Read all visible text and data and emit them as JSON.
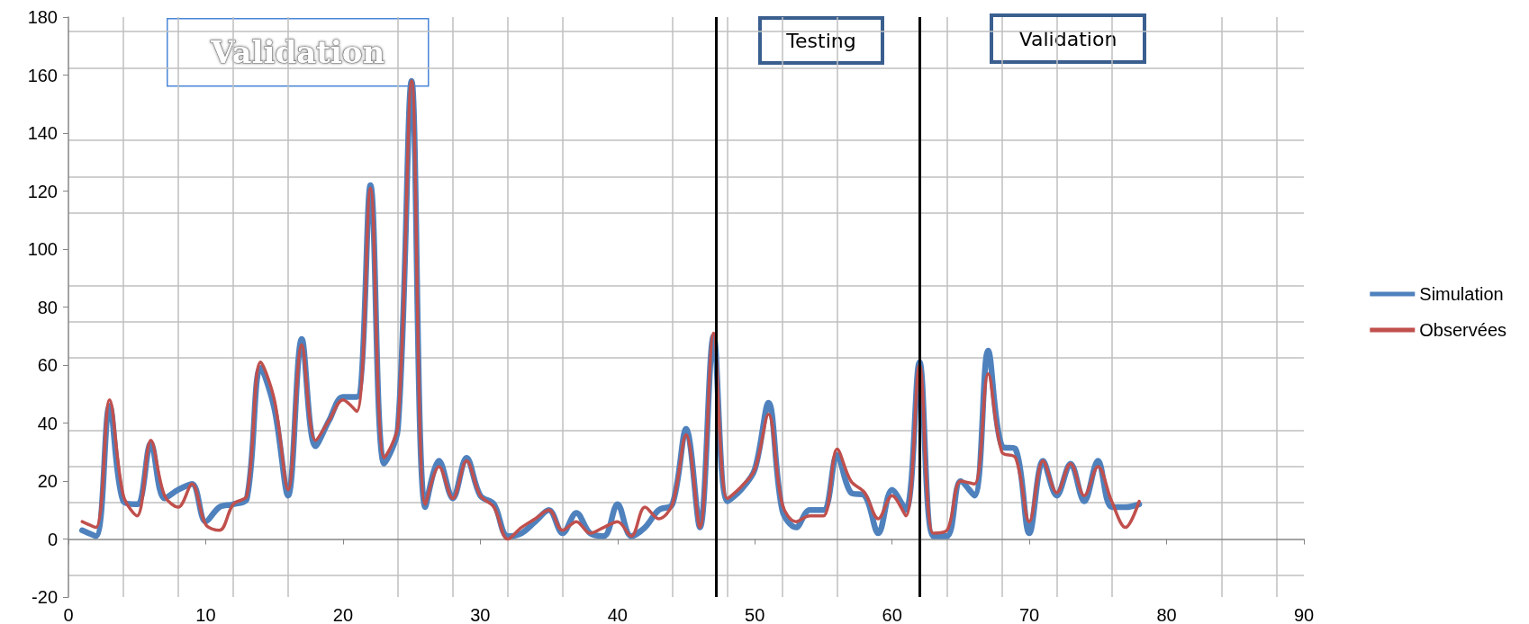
{
  "chart_data": {
    "type": "line",
    "x": [
      1,
      2,
      3,
      4,
      5,
      6,
      7,
      8,
      9,
      10,
      11,
      12,
      13,
      14,
      15,
      16,
      17,
      18,
      19,
      20,
      21,
      22,
      23,
      24,
      25,
      26,
      27,
      28,
      29,
      30,
      31,
      32,
      33,
      34,
      35,
      36,
      37,
      38,
      39,
      40,
      41,
      42,
      43,
      44,
      45,
      46,
      47,
      48,
      49,
      50,
      51,
      52,
      53,
      54,
      55,
      56,
      57,
      58,
      59,
      60,
      61,
      62,
      63,
      64,
      65,
      66,
      67,
      68,
      69,
      70,
      71,
      72,
      73,
      74,
      75,
      76,
      77,
      78
    ],
    "series": [
      {
        "name": "Simulation",
        "color": "#4f81bd",
        "values": [
          3,
          1,
          46,
          13,
          12,
          33,
          14,
          17,
          19,
          6,
          11,
          12,
          14,
          59,
          45,
          15,
          69,
          32,
          41,
          49,
          49,
          122,
          26,
          38,
          158,
          11,
          27,
          14,
          28,
          15,
          12,
          1,
          2,
          6,
          10,
          2,
          9,
          2,
          1,
          12,
          1,
          4,
          10,
          12,
          38,
          4,
          70,
          13,
          17,
          24,
          47,
          10,
          4,
          10,
          10,
          29,
          16,
          15,
          2,
          17,
          10,
          61,
          1,
          1,
          20,
          15,
          65,
          32,
          31,
          2,
          27,
          15,
          26,
          13,
          27,
          11,
          11,
          12
        ]
      },
      {
        "name": "Observées",
        "color": "#c0504d",
        "values": [
          6,
          4,
          48,
          15,
          8,
          34,
          15,
          11,
          19,
          5,
          3,
          12,
          15,
          61,
          48,
          17,
          67,
          34,
          41,
          48,
          44,
          121,
          28,
          39,
          158,
          12,
          25,
          14,
          27,
          15,
          11,
          0,
          4,
          7,
          10,
          3,
          6,
          2,
          4,
          6,
          1,
          11,
          7,
          12,
          36,
          4,
          71,
          14,
          18,
          24,
          43,
          12,
          6,
          8,
          8,
          31,
          20,
          16,
          7,
          15,
          8,
          60,
          2,
          3,
          20,
          19,
          57,
          30,
          28,
          6,
          27,
          16,
          26,
          15,
          25,
          13,
          4,
          13
        ]
      }
    ],
    "xlim": [
      0,
      90
    ],
    "xticks": [
      0,
      10,
      20,
      30,
      40,
      50,
      60,
      70,
      80,
      90
    ],
    "ylim": [
      -20,
      180
    ],
    "yticks": [
      -20,
      0,
      20,
      40,
      60,
      80,
      100,
      120,
      140,
      160,
      180
    ],
    "grid": true,
    "legend": "right",
    "marker": "none",
    "line_style": "solid",
    "ref_lines": [
      {
        "axis": "x",
        "value": 47.2,
        "color": "#000000"
      },
      {
        "axis": "x",
        "value": 62,
        "color": "#000000"
      }
    ],
    "annotations": [
      "Validation",
      "Testing",
      "Validation"
    ]
  }
}
